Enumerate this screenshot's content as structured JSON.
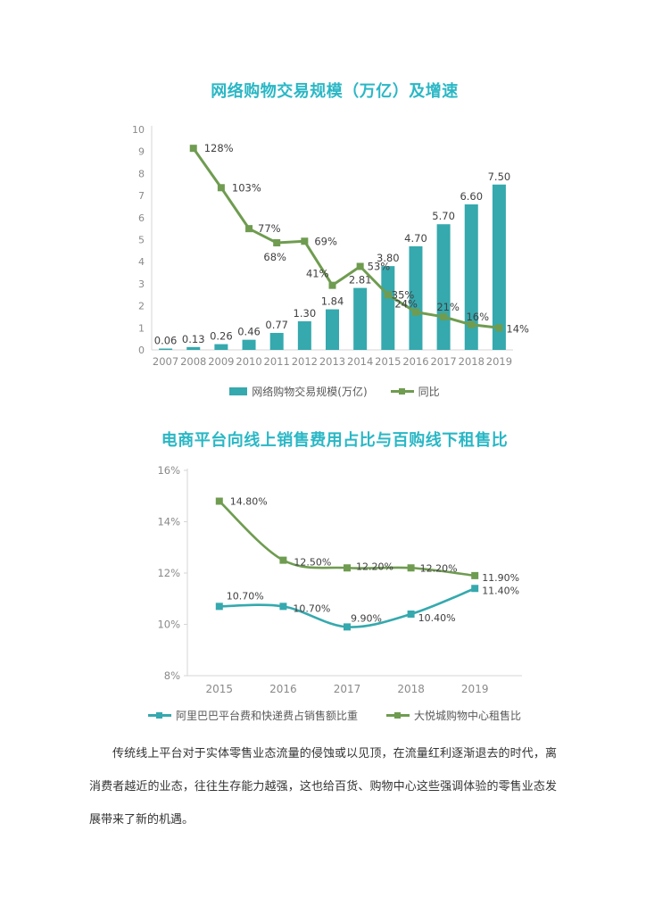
{
  "colors": {
    "teal": "#35A9AE",
    "green": "#6F9C50",
    "title_accent": "#2AB7C5",
    "axis_text": "#8A8A8A",
    "data_label": "#404040",
    "axis_line": "#D6D6D6",
    "legend_text": "#595959",
    "body_text": "#333333"
  },
  "chart_data": [
    {
      "type": "bar",
      "title": "网络购物交易规模（万亿）及增速",
      "categories": [
        "2007",
        "2008",
        "2009",
        "2010",
        "2011",
        "2012",
        "2013",
        "2014",
        "2015",
        "2016",
        "2017",
        "2018",
        "2019"
      ],
      "y_axis": {
        "min": 0,
        "max": 10,
        "ticks": [
          0,
          1,
          2,
          3,
          4,
          5,
          6,
          7,
          8,
          9,
          10
        ]
      },
      "y2_axis": {
        "min": 0,
        "max": 140,
        "unit": "%"
      },
      "grid": "off",
      "legend_position": "bottom",
      "series": [
        {
          "name": "网络购物交易规模(万亿)",
          "type": "bar",
          "color": "#35A9AE",
          "values": [
            0.06,
            0.13,
            0.26,
            0.46,
            0.77,
            1.3,
            1.84,
            2.81,
            3.8,
            4.7,
            5.7,
            6.6,
            7.5
          ],
          "labels": [
            "0.06",
            "0.13",
            "0.26",
            "0.46",
            "0.77",
            "1.30",
            "1.84",
            "2.81",
            "3.80",
            "4.70",
            "5.70",
            "6.60",
            "7.50"
          ]
        },
        {
          "name": "同比",
          "type": "line",
          "color": "#6F9C50",
          "x_start_index": 1,
          "values": [
            128,
            103,
            77,
            68,
            69,
            41,
            53,
            35,
            24,
            21,
            16,
            14
          ],
          "labels": [
            "128%",
            "103%",
            "77%",
            "68%",
            "69%",
            "41%",
            "53%",
            "35%",
            "24%",
            "21%",
            "16%",
            "14%"
          ]
        }
      ]
    },
    {
      "type": "line",
      "title": "电商平台向线上销售费用占比与百购线下租售比",
      "categories": [
        "2015",
        "2016",
        "2017",
        "2018",
        "2019"
      ],
      "y_axis": {
        "min": 8,
        "max": 16,
        "tick_values": [
          8,
          10,
          12,
          14,
          16
        ],
        "tick_labels": [
          "8%",
          "10%",
          "12%",
          "14%",
          "16%"
        ]
      },
      "grid": "off",
      "legend_position": "bottom",
      "series": [
        {
          "name": "阿里巴巴平台费和快递费占销售额比重",
          "type": "line",
          "color": "#35A9AE",
          "values": [
            10.7,
            10.7,
            9.9,
            10.4,
            11.4
          ],
          "labels": [
            "10.70%",
            "10.70%",
            "9.90%",
            "10.40%",
            "11.40%"
          ]
        },
        {
          "name": "大悦城购物中心租售比",
          "type": "line",
          "color": "#6F9C50",
          "values": [
            14.8,
            12.5,
            12.2,
            12.2,
            11.9
          ],
          "labels": [
            "14.80%",
            "12.50%",
            "12.20%",
            "12.20%",
            "11.90%"
          ]
        }
      ]
    }
  ],
  "paragraph": {
    "text": "传统线上平台对于实体零售业态流量的侵蚀或以见顶，在流量红利逐渐退去的时代，离消费者越近的业态，往往生存能力越强，这也给百货、购物中心这些强调体验的零售业态发展带来了新的机遇。"
  }
}
